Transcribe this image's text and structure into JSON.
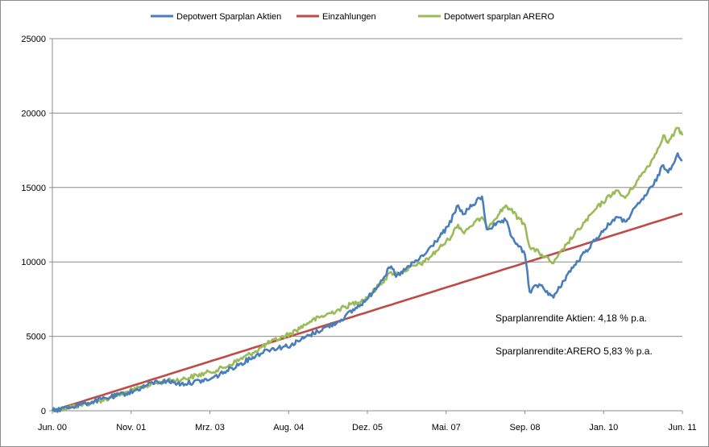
{
  "chart_data": {
    "type": "line",
    "title": "",
    "xlabel": "",
    "ylabel": "",
    "x_range": [
      "2000-06",
      "2011-06"
    ],
    "ylim": [
      0,
      25000
    ],
    "y_ticks": [
      "0",
      "5000",
      "10000",
      "15000",
      "20000",
      "25000"
    ],
    "x_tick_labels": [
      "Jun. 00",
      "Nov. 01",
      "Mrz. 03",
      "Aug. 04",
      "Dez. 05",
      "Mai. 07",
      "Sep. 08",
      "Jan. 10",
      "Jun. 11"
    ],
    "grid": "horizontal",
    "legend_position": "top",
    "series": [
      {
        "name": "Depotwert Sparplan Aktien",
        "color": "#4a7ebb",
        "points": [
          [
            "2000-06",
            0
          ],
          [
            "2001-01",
            500
          ],
          [
            "2001-06",
            900
          ],
          [
            "2001-11",
            1300
          ],
          [
            "2002-03",
            1900
          ],
          [
            "2002-06",
            2000
          ],
          [
            "2002-09",
            1800
          ],
          [
            "2003-03",
            2100
          ],
          [
            "2003-06",
            2600
          ],
          [
            "2003-12",
            3600
          ],
          [
            "2004-03",
            4100
          ],
          [
            "2004-08",
            4400
          ],
          [
            "2004-12",
            5100
          ],
          [
            "2005-06",
            6000
          ],
          [
            "2005-12",
            7500
          ],
          [
            "2006-05",
            9700
          ],
          [
            "2006-06",
            9000
          ],
          [
            "2006-12",
            10500
          ],
          [
            "2007-05",
            12400
          ],
          [
            "2007-07",
            13800
          ],
          [
            "2007-08",
            13200
          ],
          [
            "2007-12",
            14400
          ],
          [
            "2008-01",
            12200
          ],
          [
            "2008-05",
            12800
          ],
          [
            "2008-06",
            11800
          ],
          [
            "2008-09",
            10500
          ],
          [
            "2008-10",
            8000
          ],
          [
            "2008-12",
            8500
          ],
          [
            "2009-03",
            7600
          ],
          [
            "2009-06",
            9200
          ],
          [
            "2009-12",
            11600
          ],
          [
            "2010-04",
            13000
          ],
          [
            "2010-06",
            12700
          ],
          [
            "2010-12",
            15200
          ],
          [
            "2011-02",
            16500
          ],
          [
            "2011-03",
            16000
          ],
          [
            "2011-05",
            17300
          ],
          [
            "2011-06",
            16800
          ]
        ]
      },
      {
        "name": "Einzahlungen",
        "color": "#be4b48",
        "points": [
          [
            "2000-06",
            0
          ],
          [
            "2011-06",
            13250
          ]
        ]
      },
      {
        "name": "Depotwert sparplan ARERO",
        "color": "#9bbb59",
        "points": [
          [
            "2000-06",
            0
          ],
          [
            "2001-01",
            450
          ],
          [
            "2001-06",
            850
          ],
          [
            "2001-11",
            1400
          ],
          [
            "2002-03",
            1800
          ],
          [
            "2002-06",
            2000
          ],
          [
            "2002-09",
            2100
          ],
          [
            "2003-03",
            2600
          ],
          [
            "2003-06",
            2900
          ],
          [
            "2003-12",
            3900
          ],
          [
            "2004-03",
            4500
          ],
          [
            "2004-08",
            5200
          ],
          [
            "2004-12",
            6000
          ],
          [
            "2005-06",
            6800
          ],
          [
            "2005-12",
            7600
          ],
          [
            "2006-05",
            9300
          ],
          [
            "2006-06",
            9200
          ],
          [
            "2006-12",
            10000
          ],
          [
            "2007-05",
            11500
          ],
          [
            "2007-07",
            12500
          ],
          [
            "2007-08",
            12000
          ],
          [
            "2007-12",
            13000
          ],
          [
            "2008-01",
            12300
          ],
          [
            "2008-05",
            13800
          ],
          [
            "2008-06",
            13500
          ],
          [
            "2008-09",
            12500
          ],
          [
            "2008-10",
            11000
          ],
          [
            "2008-12",
            10600
          ],
          [
            "2009-03",
            9900
          ],
          [
            "2009-06",
            11300
          ],
          [
            "2009-12",
            13600
          ],
          [
            "2010-04",
            14800
          ],
          [
            "2010-06",
            14300
          ],
          [
            "2010-12",
            17000
          ],
          [
            "2011-02",
            18500
          ],
          [
            "2011-03",
            18000
          ],
          [
            "2011-05",
            19000
          ],
          [
            "2011-06",
            18500
          ]
        ]
      }
    ],
    "annotations": [
      "Sparplanrendite Aktien: 4,18 % p.a.",
      "Sparplanrendite:ARERO 5,83 % p.a."
    ]
  }
}
